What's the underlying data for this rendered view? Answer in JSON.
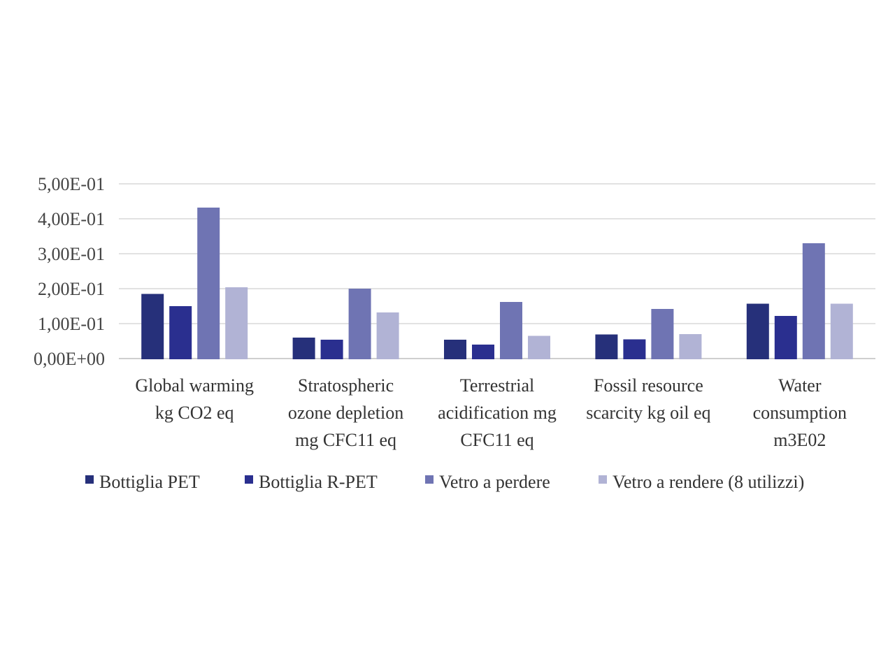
{
  "chart_data": {
    "type": "bar",
    "categories": [
      [
        "Global warming",
        "kg CO2 eq"
      ],
      [
        "Stratospheric",
        "ozone depletion",
        "mg CFC11 eq"
      ],
      [
        "Terrestrial",
        "acidification mg",
        "CFC11 eq"
      ],
      [
        "Fossil resource",
        "scarcity kg oil eq"
      ],
      [
        "Water",
        "consumption",
        "m3E02"
      ]
    ],
    "series": [
      {
        "name": "Bottiglia PET",
        "color": "#26307a",
        "values": [
          0.183,
          0.058,
          0.052,
          0.067,
          0.155
        ]
      },
      {
        "name": "Bottiglia R-PET",
        "color": "#2a2f8f",
        "values": [
          0.148,
          0.052,
          0.038,
          0.053,
          0.12
        ]
      },
      {
        "name": "Vetro a perdere",
        "color": "#6f74b3",
        "values": [
          0.43,
          0.198,
          0.16,
          0.14,
          0.328
        ]
      },
      {
        "name": "Vetro a rendere (8 utilizzi)",
        "color": "#b1b3d5",
        "values": [
          0.202,
          0.13,
          0.063,
          0.068,
          0.155
        ]
      }
    ],
    "ylim": [
      0,
      0.5
    ],
    "yticks": [
      {
        "value": 0,
        "label": "0,00E+00"
      },
      {
        "value": 0.1,
        "label": "1,00E-01"
      },
      {
        "value": 0.2,
        "label": "2,00E-01"
      },
      {
        "value": 0.3,
        "label": "3,00E-01"
      },
      {
        "value": 0.4,
        "label": "4,00E-01"
      },
      {
        "value": 0.5,
        "label": "5,00E-01"
      }
    ],
    "grid": true,
    "legend_position": "bottom"
  }
}
